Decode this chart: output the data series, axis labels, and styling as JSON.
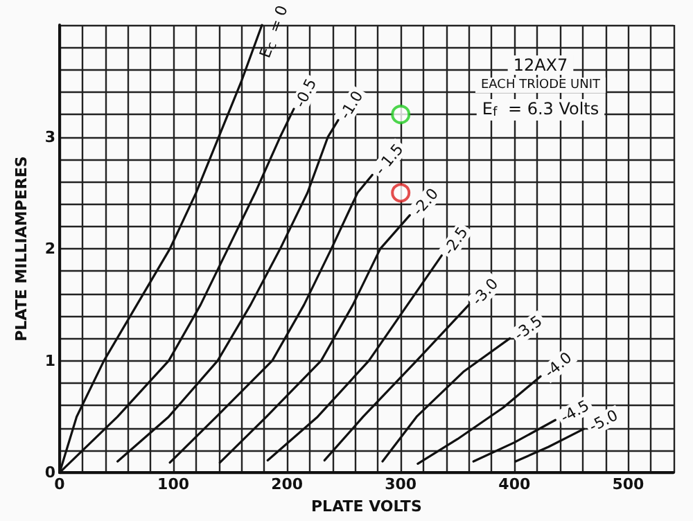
{
  "chart_data": {
    "type": "line",
    "title": "12AX7",
    "subtitle": "EACH TRIODE UNIT",
    "annotations": [
      "E$_{f}$ = 6.3 Volts"
    ],
    "xlabel": "PLATE VOLTS",
    "ylabel": "PLATE MILLIAMPERES",
    "xlim": [
      0,
      540
    ],
    "ylim": [
      0,
      4
    ],
    "xticks": [
      0,
      {
        "value": 20,
        "label": null
      },
      {
        "value": 40,
        "label": null
      },
      {
        "value": 60,
        "label": null
      },
      {
        "value": 80,
        "label": null
      },
      100,
      {
        "value": 120,
        "label": null
      },
      {
        "value": 140,
        "label": null
      },
      {
        "value": 160,
        "label": null
      },
      {
        "value": 180,
        "label": null
      },
      200,
      {
        "value": 220,
        "label": null
      },
      {
        "value": 240,
        "label": null
      },
      {
        "value": 260,
        "label": null
      },
      {
        "value": 280,
        "label": null
      },
      300,
      {
        "value": 320,
        "label": null
      },
      {
        "value": 340,
        "label": null
      },
      {
        "value": 360,
        "label": null
      },
      {
        "value": 380,
        "label": null
      },
      400,
      {
        "value": 420,
        "label": null
      },
      {
        "value": 440,
        "label": null
      },
      {
        "value": 460,
        "label": null
      },
      {
        "value": 480,
        "label": null
      },
      500,
      {
        "value": 520,
        "label": null
      },
      {
        "value": 540,
        "label": null
      }
    ],
    "yticks": [
      0,
      {
        "value": 0.2,
        "label": null
      },
      {
        "value": 0.4,
        "label": null
      },
      {
        "value": 0.6,
        "label": null
      },
      {
        "value": 0.8,
        "label": null
      },
      1,
      {
        "value": 1.2,
        "label": null
      },
      {
        "value": 1.4,
        "label": null
      },
      {
        "value": 1.6,
        "label": null
      },
      {
        "value": 1.8,
        "label": null
      },
      2,
      {
        "value": 2.2,
        "label": null
      },
      {
        "value": 2.4,
        "label": null
      },
      {
        "value": 2.6,
        "label": null
      },
      {
        "value": 2.8,
        "label": null
      },
      3,
      {
        "value": 3.2,
        "label": null
      },
      {
        "value": 3.4,
        "label": null
      },
      {
        "value": 3.6,
        "label": null
      },
      {
        "value": 3.8,
        "label": null
      },
      {
        "value": 4,
        "label": null
      }
    ],
    "grid": true,
    "legend": false,
    "line_style": "solid",
    "series": [
      {
        "name": "E$_{c}$ = 0",
        "color": "#111111",
        "x": [
          0,
          15,
          39,
          68,
          97,
          120,
          140,
          160,
          178
        ],
        "values": [
          0,
          0.5,
          1,
          1.5,
          2,
          2.5,
          3,
          3.5,
          4
        ]
      },
      {
        "name": "-0.5",
        "color": "#111111",
        "x": [
          0,
          51,
          96,
          124,
          148,
          172,
          194,
          206
        ],
        "values": [
          0,
          0.5,
          1,
          1.5,
          2,
          2.5,
          3,
          3.25
        ]
      },
      {
        "name": "-1.0",
        "color": "#111111",
        "x": [
          51,
          96,
          139,
          168,
          194,
          218,
          236,
          245
        ],
        "values": [
          0.1,
          0.5,
          1,
          1.5,
          2,
          2.5,
          3,
          3.15
        ]
      },
      {
        "name": "- 1.5",
        "color": "#111111",
        "x": [
          97,
          138,
          187,
          215,
          239,
          262,
          275
        ],
        "values": [
          0.09,
          0.5,
          1,
          1.5,
          2,
          2.5,
          2.66
        ]
      },
      {
        "name": "-2.0",
        "color": "#111111",
        "x": [
          141,
          182,
          230,
          258,
          282,
          308
        ],
        "values": [
          0.09,
          0.5,
          1,
          1.5,
          2,
          2.3
        ]
      },
      {
        "name": "-2.5",
        "color": "#111111",
        "x": [
          183,
          227,
          272,
          306,
          336
        ],
        "values": [
          0.11,
          0.5,
          1,
          1.5,
          1.94
        ]
      },
      {
        "name": "-3.0",
        "color": "#111111",
        "x": [
          233,
          267,
          314,
          360
        ],
        "values": [
          0.11,
          0.5,
          1,
          1.5
        ]
      },
      {
        "name": "-3.5",
        "color": "#111111",
        "x": [
          284,
          314,
          355,
          396
        ],
        "values": [
          0.1,
          0.5,
          0.9,
          1.2
        ]
      },
      {
        "name": "-4.0",
        "color": "#111111",
        "x": [
          315,
          350,
          390,
          423
        ],
        "values": [
          0.08,
          0.3,
          0.58,
          0.86
        ]
      },
      {
        "name": "-4.5",
        "color": "#111111",
        "x": [
          364,
          400,
          436
        ],
        "values": [
          0.1,
          0.27,
          0.47
        ]
      },
      {
        "name": "-5.0",
        "color": "#111111",
        "x": [
          401,
          430,
          461
        ],
        "values": [
          0.1,
          0.23,
          0.39
        ]
      },
      {
        "type": "scatter",
        "marker": "circle",
        "color": "#22cc22",
        "x": [
          300
        ],
        "values": [
          3.2
        ]
      },
      {
        "type": "scatter",
        "marker": "circle",
        "color": "#dd2222",
        "x": [
          300
        ],
        "values": [
          2.5
        ]
      }
    ]
  }
}
